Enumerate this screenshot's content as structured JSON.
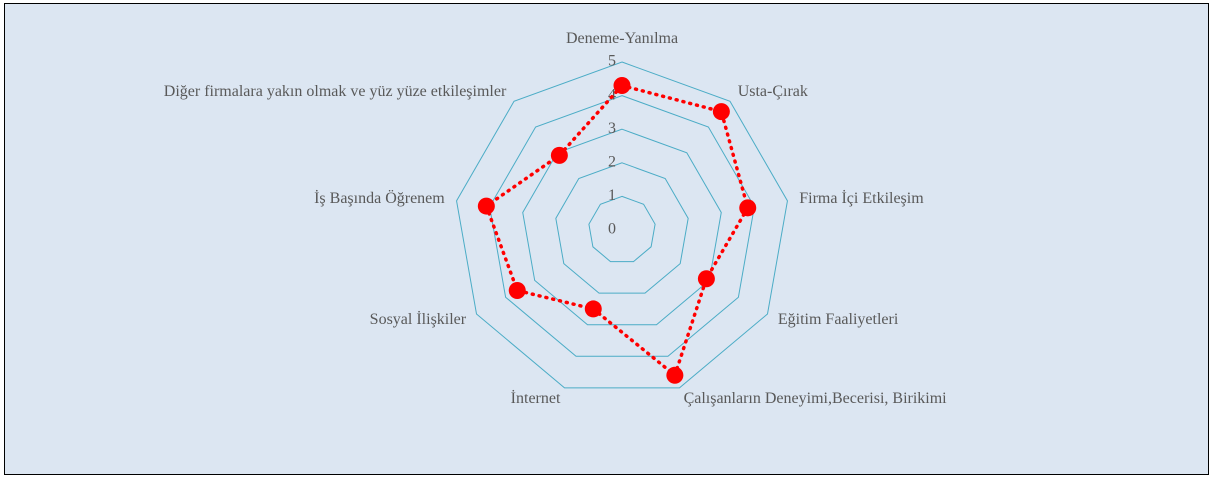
{
  "chart_data": {
    "type": "radar",
    "categories": [
      "Deneme-Yanılma",
      "Usta-Çırak",
      "Firma İçi Etkileşim",
      "Eğitim Faaliyetleri",
      "Çalışanların Deneyimi,Becerisi, Birikimi",
      "İnternet",
      "Sosyal İlişkiler",
      "İş Başında Öğrenem",
      "Diğer firmalara yakın olmak ve yüz yüze etkileşimler"
    ],
    "series": [
      {
        "color": "#ff0000",
        "values": [
          4.3,
          4.6,
          3.8,
          2.9,
          4.6,
          2.5,
          3.6,
          4.1,
          2.9
        ]
      }
    ],
    "ylim": [
      0,
      5
    ],
    "yticks": [
      0,
      1,
      2,
      3,
      4,
      5
    ],
    "grid": true,
    "grid_color": "#4bacc6"
  }
}
